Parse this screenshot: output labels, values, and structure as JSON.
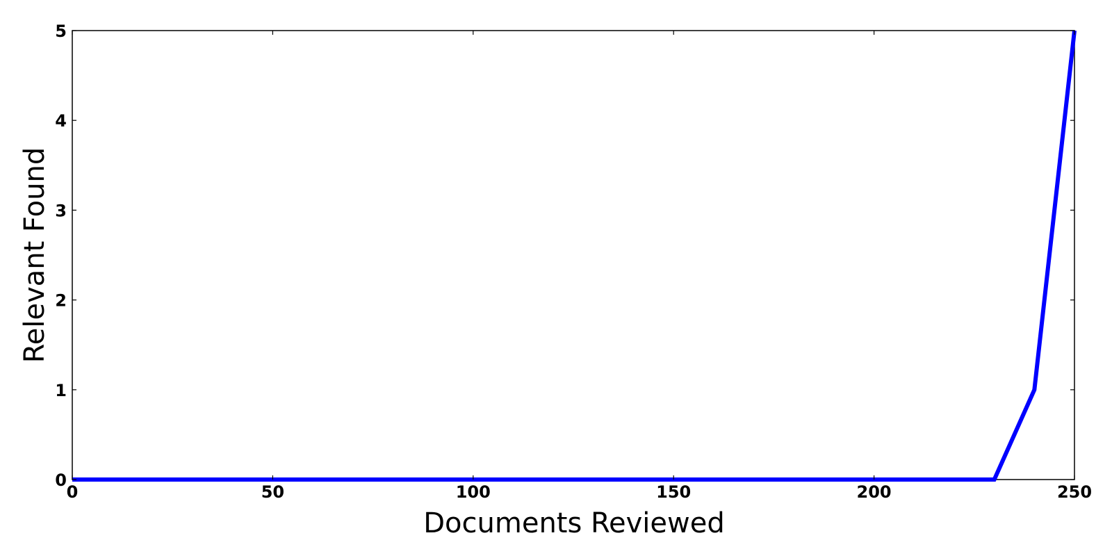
{
  "chart_data": {
    "type": "line",
    "title": "",
    "xlabel": "Documents Reviewed",
    "ylabel": "Relevant Found",
    "xlim": [
      0,
      250
    ],
    "ylim": [
      0,
      5
    ],
    "x_ticks": [
      0,
      50,
      100,
      150,
      200,
      250
    ],
    "y_ticks": [
      0,
      1,
      2,
      3,
      4,
      5
    ],
    "grid": false,
    "legend": "none",
    "series": [
      {
        "color": "#0000ff",
        "x": [
          0,
          10,
          20,
          30,
          40,
          50,
          60,
          70,
          80,
          90,
          100,
          110,
          120,
          130,
          140,
          150,
          160,
          170,
          180,
          190,
          200,
          210,
          220,
          230,
          240,
          250
        ],
        "y": [
          0,
          0,
          0,
          0,
          0,
          0,
          0,
          0,
          0,
          0,
          0,
          0,
          0,
          0,
          0,
          0,
          0,
          0,
          0,
          0,
          0,
          0,
          0,
          0,
          1,
          5
        ]
      }
    ]
  }
}
